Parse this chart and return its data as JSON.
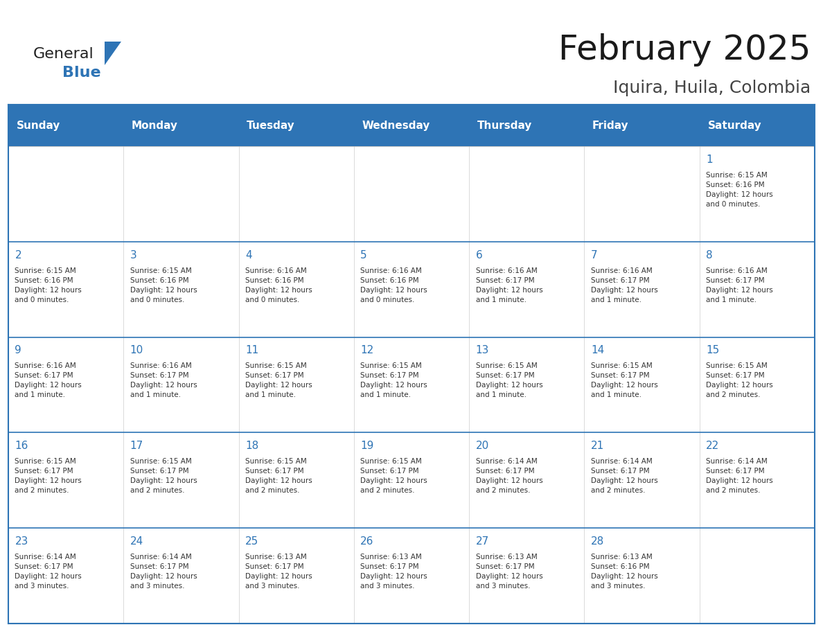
{
  "title": "February 2025",
  "subtitle": "Iquira, Huila, Colombia",
  "header_bg": "#2E74B5",
  "header_text_color": "#FFFFFF",
  "header_font_size": 11,
  "days_of_week": [
    "Sunday",
    "Monday",
    "Tuesday",
    "Wednesday",
    "Thursday",
    "Friday",
    "Saturday"
  ],
  "title_font_size": 36,
  "subtitle_font_size": 18,
  "cell_text_color": "#333333",
  "day_num_color": "#2E74B5",
  "line_color": "#2E74B5",
  "logo_general_color": "#222222",
  "logo_blue_color": "#2E74B5",
  "weeks": [
    [
      {
        "day": null,
        "info": null
      },
      {
        "day": null,
        "info": null
      },
      {
        "day": null,
        "info": null
      },
      {
        "day": null,
        "info": null
      },
      {
        "day": null,
        "info": null
      },
      {
        "day": null,
        "info": null
      },
      {
        "day": 1,
        "info": "Sunrise: 6:15 AM\nSunset: 6:16 PM\nDaylight: 12 hours\nand 0 minutes."
      }
    ],
    [
      {
        "day": 2,
        "info": "Sunrise: 6:15 AM\nSunset: 6:16 PM\nDaylight: 12 hours\nand 0 minutes."
      },
      {
        "day": 3,
        "info": "Sunrise: 6:15 AM\nSunset: 6:16 PM\nDaylight: 12 hours\nand 0 minutes."
      },
      {
        "day": 4,
        "info": "Sunrise: 6:16 AM\nSunset: 6:16 PM\nDaylight: 12 hours\nand 0 minutes."
      },
      {
        "day": 5,
        "info": "Sunrise: 6:16 AM\nSunset: 6:16 PM\nDaylight: 12 hours\nand 0 minutes."
      },
      {
        "day": 6,
        "info": "Sunrise: 6:16 AM\nSunset: 6:17 PM\nDaylight: 12 hours\nand 1 minute."
      },
      {
        "day": 7,
        "info": "Sunrise: 6:16 AM\nSunset: 6:17 PM\nDaylight: 12 hours\nand 1 minute."
      },
      {
        "day": 8,
        "info": "Sunrise: 6:16 AM\nSunset: 6:17 PM\nDaylight: 12 hours\nand 1 minute."
      }
    ],
    [
      {
        "day": 9,
        "info": "Sunrise: 6:16 AM\nSunset: 6:17 PM\nDaylight: 12 hours\nand 1 minute."
      },
      {
        "day": 10,
        "info": "Sunrise: 6:16 AM\nSunset: 6:17 PM\nDaylight: 12 hours\nand 1 minute."
      },
      {
        "day": 11,
        "info": "Sunrise: 6:15 AM\nSunset: 6:17 PM\nDaylight: 12 hours\nand 1 minute."
      },
      {
        "day": 12,
        "info": "Sunrise: 6:15 AM\nSunset: 6:17 PM\nDaylight: 12 hours\nand 1 minute."
      },
      {
        "day": 13,
        "info": "Sunrise: 6:15 AM\nSunset: 6:17 PM\nDaylight: 12 hours\nand 1 minute."
      },
      {
        "day": 14,
        "info": "Sunrise: 6:15 AM\nSunset: 6:17 PM\nDaylight: 12 hours\nand 1 minute."
      },
      {
        "day": 15,
        "info": "Sunrise: 6:15 AM\nSunset: 6:17 PM\nDaylight: 12 hours\nand 2 minutes."
      }
    ],
    [
      {
        "day": 16,
        "info": "Sunrise: 6:15 AM\nSunset: 6:17 PM\nDaylight: 12 hours\nand 2 minutes."
      },
      {
        "day": 17,
        "info": "Sunrise: 6:15 AM\nSunset: 6:17 PM\nDaylight: 12 hours\nand 2 minutes."
      },
      {
        "day": 18,
        "info": "Sunrise: 6:15 AM\nSunset: 6:17 PM\nDaylight: 12 hours\nand 2 minutes."
      },
      {
        "day": 19,
        "info": "Sunrise: 6:15 AM\nSunset: 6:17 PM\nDaylight: 12 hours\nand 2 minutes."
      },
      {
        "day": 20,
        "info": "Sunrise: 6:14 AM\nSunset: 6:17 PM\nDaylight: 12 hours\nand 2 minutes."
      },
      {
        "day": 21,
        "info": "Sunrise: 6:14 AM\nSunset: 6:17 PM\nDaylight: 12 hours\nand 2 minutes."
      },
      {
        "day": 22,
        "info": "Sunrise: 6:14 AM\nSunset: 6:17 PM\nDaylight: 12 hours\nand 2 minutes."
      }
    ],
    [
      {
        "day": 23,
        "info": "Sunrise: 6:14 AM\nSunset: 6:17 PM\nDaylight: 12 hours\nand 3 minutes."
      },
      {
        "day": 24,
        "info": "Sunrise: 6:14 AM\nSunset: 6:17 PM\nDaylight: 12 hours\nand 3 minutes."
      },
      {
        "day": 25,
        "info": "Sunrise: 6:13 AM\nSunset: 6:17 PM\nDaylight: 12 hours\nand 3 minutes."
      },
      {
        "day": 26,
        "info": "Sunrise: 6:13 AM\nSunset: 6:17 PM\nDaylight: 12 hours\nand 3 minutes."
      },
      {
        "day": 27,
        "info": "Sunrise: 6:13 AM\nSunset: 6:17 PM\nDaylight: 12 hours\nand 3 minutes."
      },
      {
        "day": 28,
        "info": "Sunrise: 6:13 AM\nSunset: 6:16 PM\nDaylight: 12 hours\nand 3 minutes."
      },
      {
        "day": null,
        "info": null
      }
    ]
  ]
}
